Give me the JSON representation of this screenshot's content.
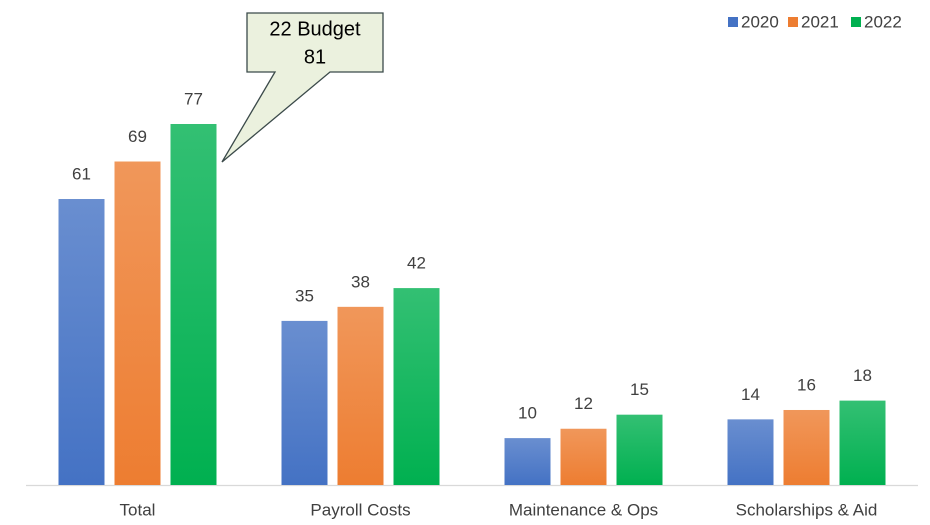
{
  "chart_data": {
    "type": "bar",
    "categories": [
      "Total",
      "Payroll Costs",
      "Maintenance & Ops",
      "Scholarships & Aid"
    ],
    "series": [
      {
        "name": "2020",
        "color": "#4472c4",
        "values": [
          61,
          35,
          10,
          14
        ]
      },
      {
        "name": "2021",
        "color": "#ed7d31",
        "values": [
          69,
          38,
          12,
          16
        ]
      },
      {
        "name": "2022",
        "color": "#00b050",
        "values": [
          77,
          42,
          15,
          18
        ]
      }
    ],
    "annotation": {
      "label": "22 Budget",
      "value": 81
    },
    "legend": "top-right"
  }
}
